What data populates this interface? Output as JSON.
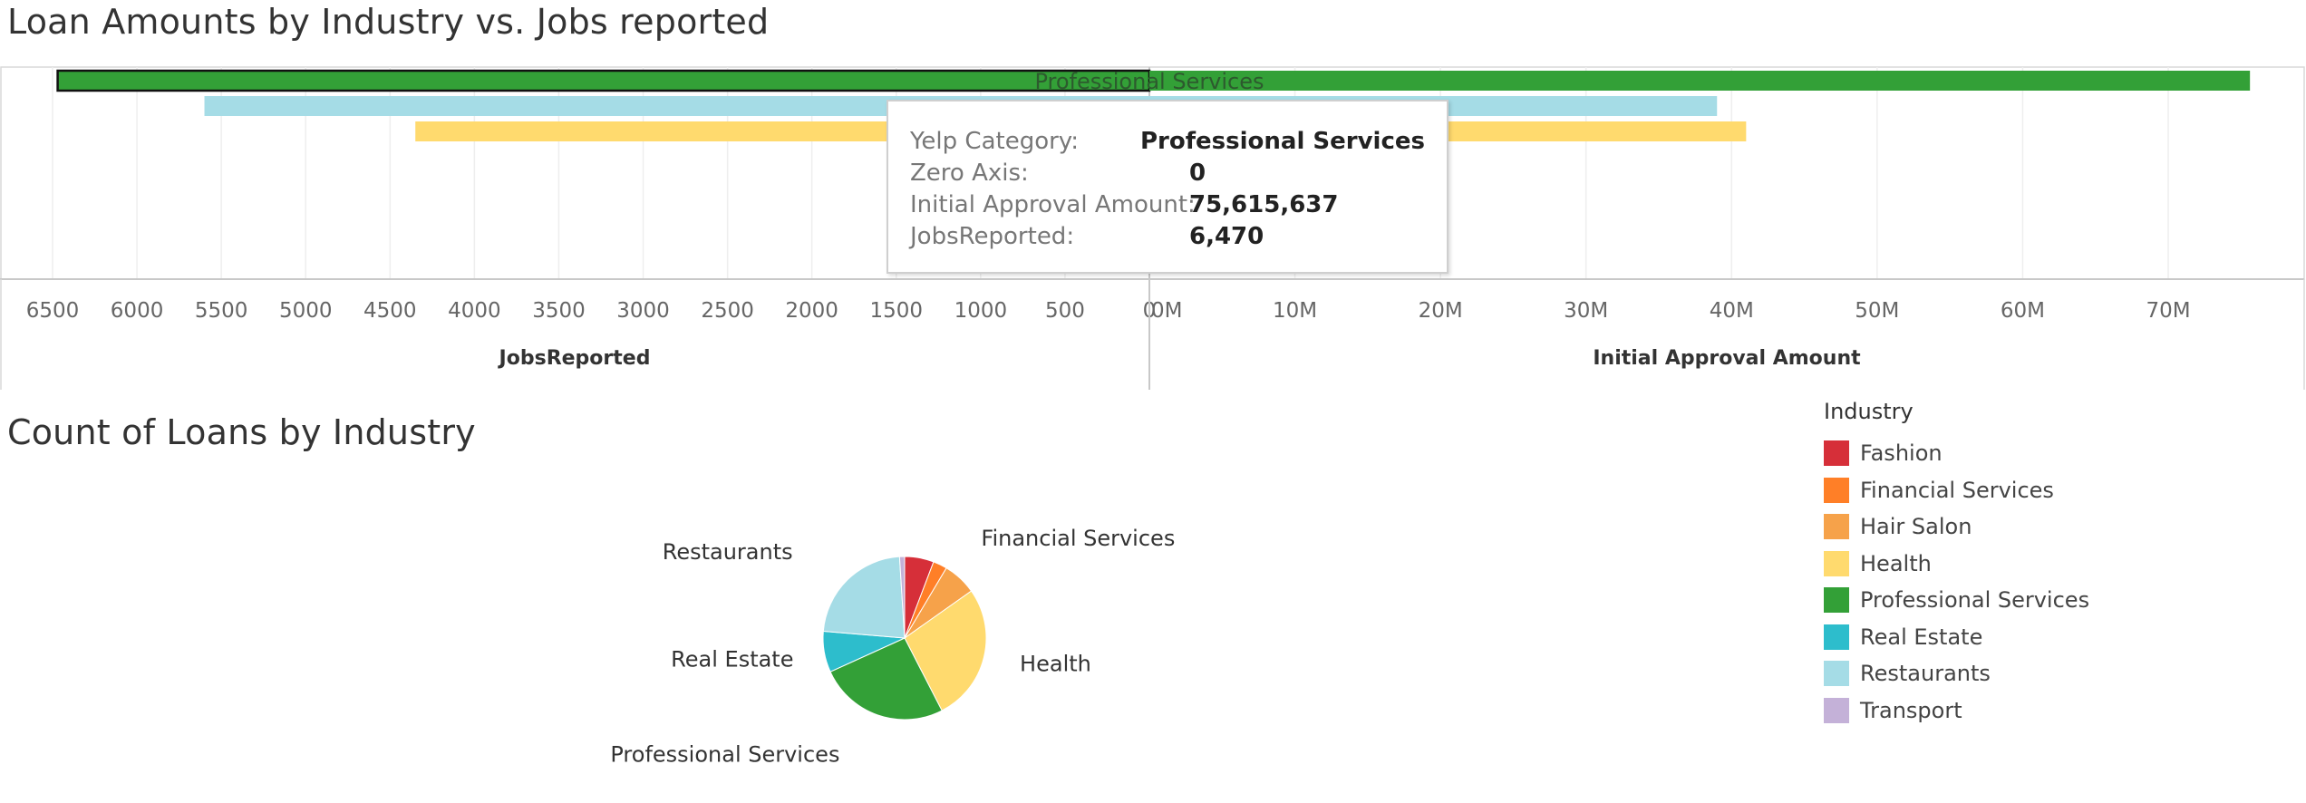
{
  "titles": {
    "bar": "Loan Amounts by Industry vs. Jobs reported",
    "pie": "Count of Loans by Industry"
  },
  "colors": {
    "Fashion": "#d62f39",
    "Financial Services": "#ff7f27",
    "Hair Salon": "#f6a24a",
    "Health": "#ffda6e",
    "Professional Services": "#33a037",
    "Real Estate": "#2dbdcc",
    "Restaurants": "#a5dce6",
    "Transport": "#c4b1d8"
  },
  "chart_data": [
    {
      "type": "bar",
      "title": "Loan Amounts by Industry vs. Jobs reported",
      "layout": "diverging",
      "left_axis": {
        "label": "JobsReported",
        "reversed": true,
        "range": [
          0,
          6800
        ],
        "ticks": [
          6500,
          6000,
          5500,
          5000,
          4500,
          4000,
          3500,
          3000,
          2500,
          2000,
          1500,
          1000,
          500,
          0
        ]
      },
      "right_axis": {
        "label": "Initial Approval Amount",
        "range": [
          0,
          80000000
        ],
        "ticks": [
          "0M",
          "10M",
          "20M",
          "30M",
          "40M",
          "50M",
          "60M",
          "70M"
        ],
        "tick_values": [
          0,
          10000000,
          20000000,
          30000000,
          40000000,
          50000000,
          60000000,
          70000000
        ]
      },
      "categories": [
        "Professional Services",
        "Restaurants",
        "Health"
      ],
      "series": [
        {
          "name": "JobsReported",
          "values": [
            6470,
            5600,
            4350
          ]
        },
        {
          "name": "Initial Approval Amount",
          "values": [
            75615637,
            39000000,
            41000000
          ]
        }
      ],
      "highlight": {
        "category": "Professional Services",
        "label": "Professional Services"
      },
      "tooltip": [
        {
          "key": "Yelp Category:",
          "value": "Professional Services"
        },
        {
          "key": "Zero Axis:",
          "value": "0"
        },
        {
          "key": "Initial Approval Amount:",
          "value": "75,615,637"
        },
        {
          "key": "JobsReported:",
          "value": "6,470"
        }
      ]
    },
    {
      "type": "pie",
      "title": "Count of Loans by Industry",
      "slices": [
        {
          "label": "Fashion",
          "value": 5.2
        },
        {
          "label": "Financial Services",
          "value": 2.5
        },
        {
          "label": "Hair Salon",
          "value": 6.0
        },
        {
          "label": "Health",
          "value": 24.5
        },
        {
          "label": "Professional Services",
          "value": 23.2
        },
        {
          "label": "Real Estate",
          "value": 7.3
        },
        {
          "label": "Restaurants",
          "value": 20.4
        },
        {
          "label": "Transport",
          "value": 0.9
        }
      ],
      "slice_labels_shown": [
        "Financial Services",
        "Health",
        "Professional Services",
        "Real Estate",
        "Restaurants"
      ]
    }
  ],
  "legend": {
    "title": "Industry",
    "items": [
      "Fashion",
      "Financial Services",
      "Hair Salon",
      "Health",
      "Professional Services",
      "Real Estate",
      "Restaurants",
      "Transport"
    ]
  }
}
